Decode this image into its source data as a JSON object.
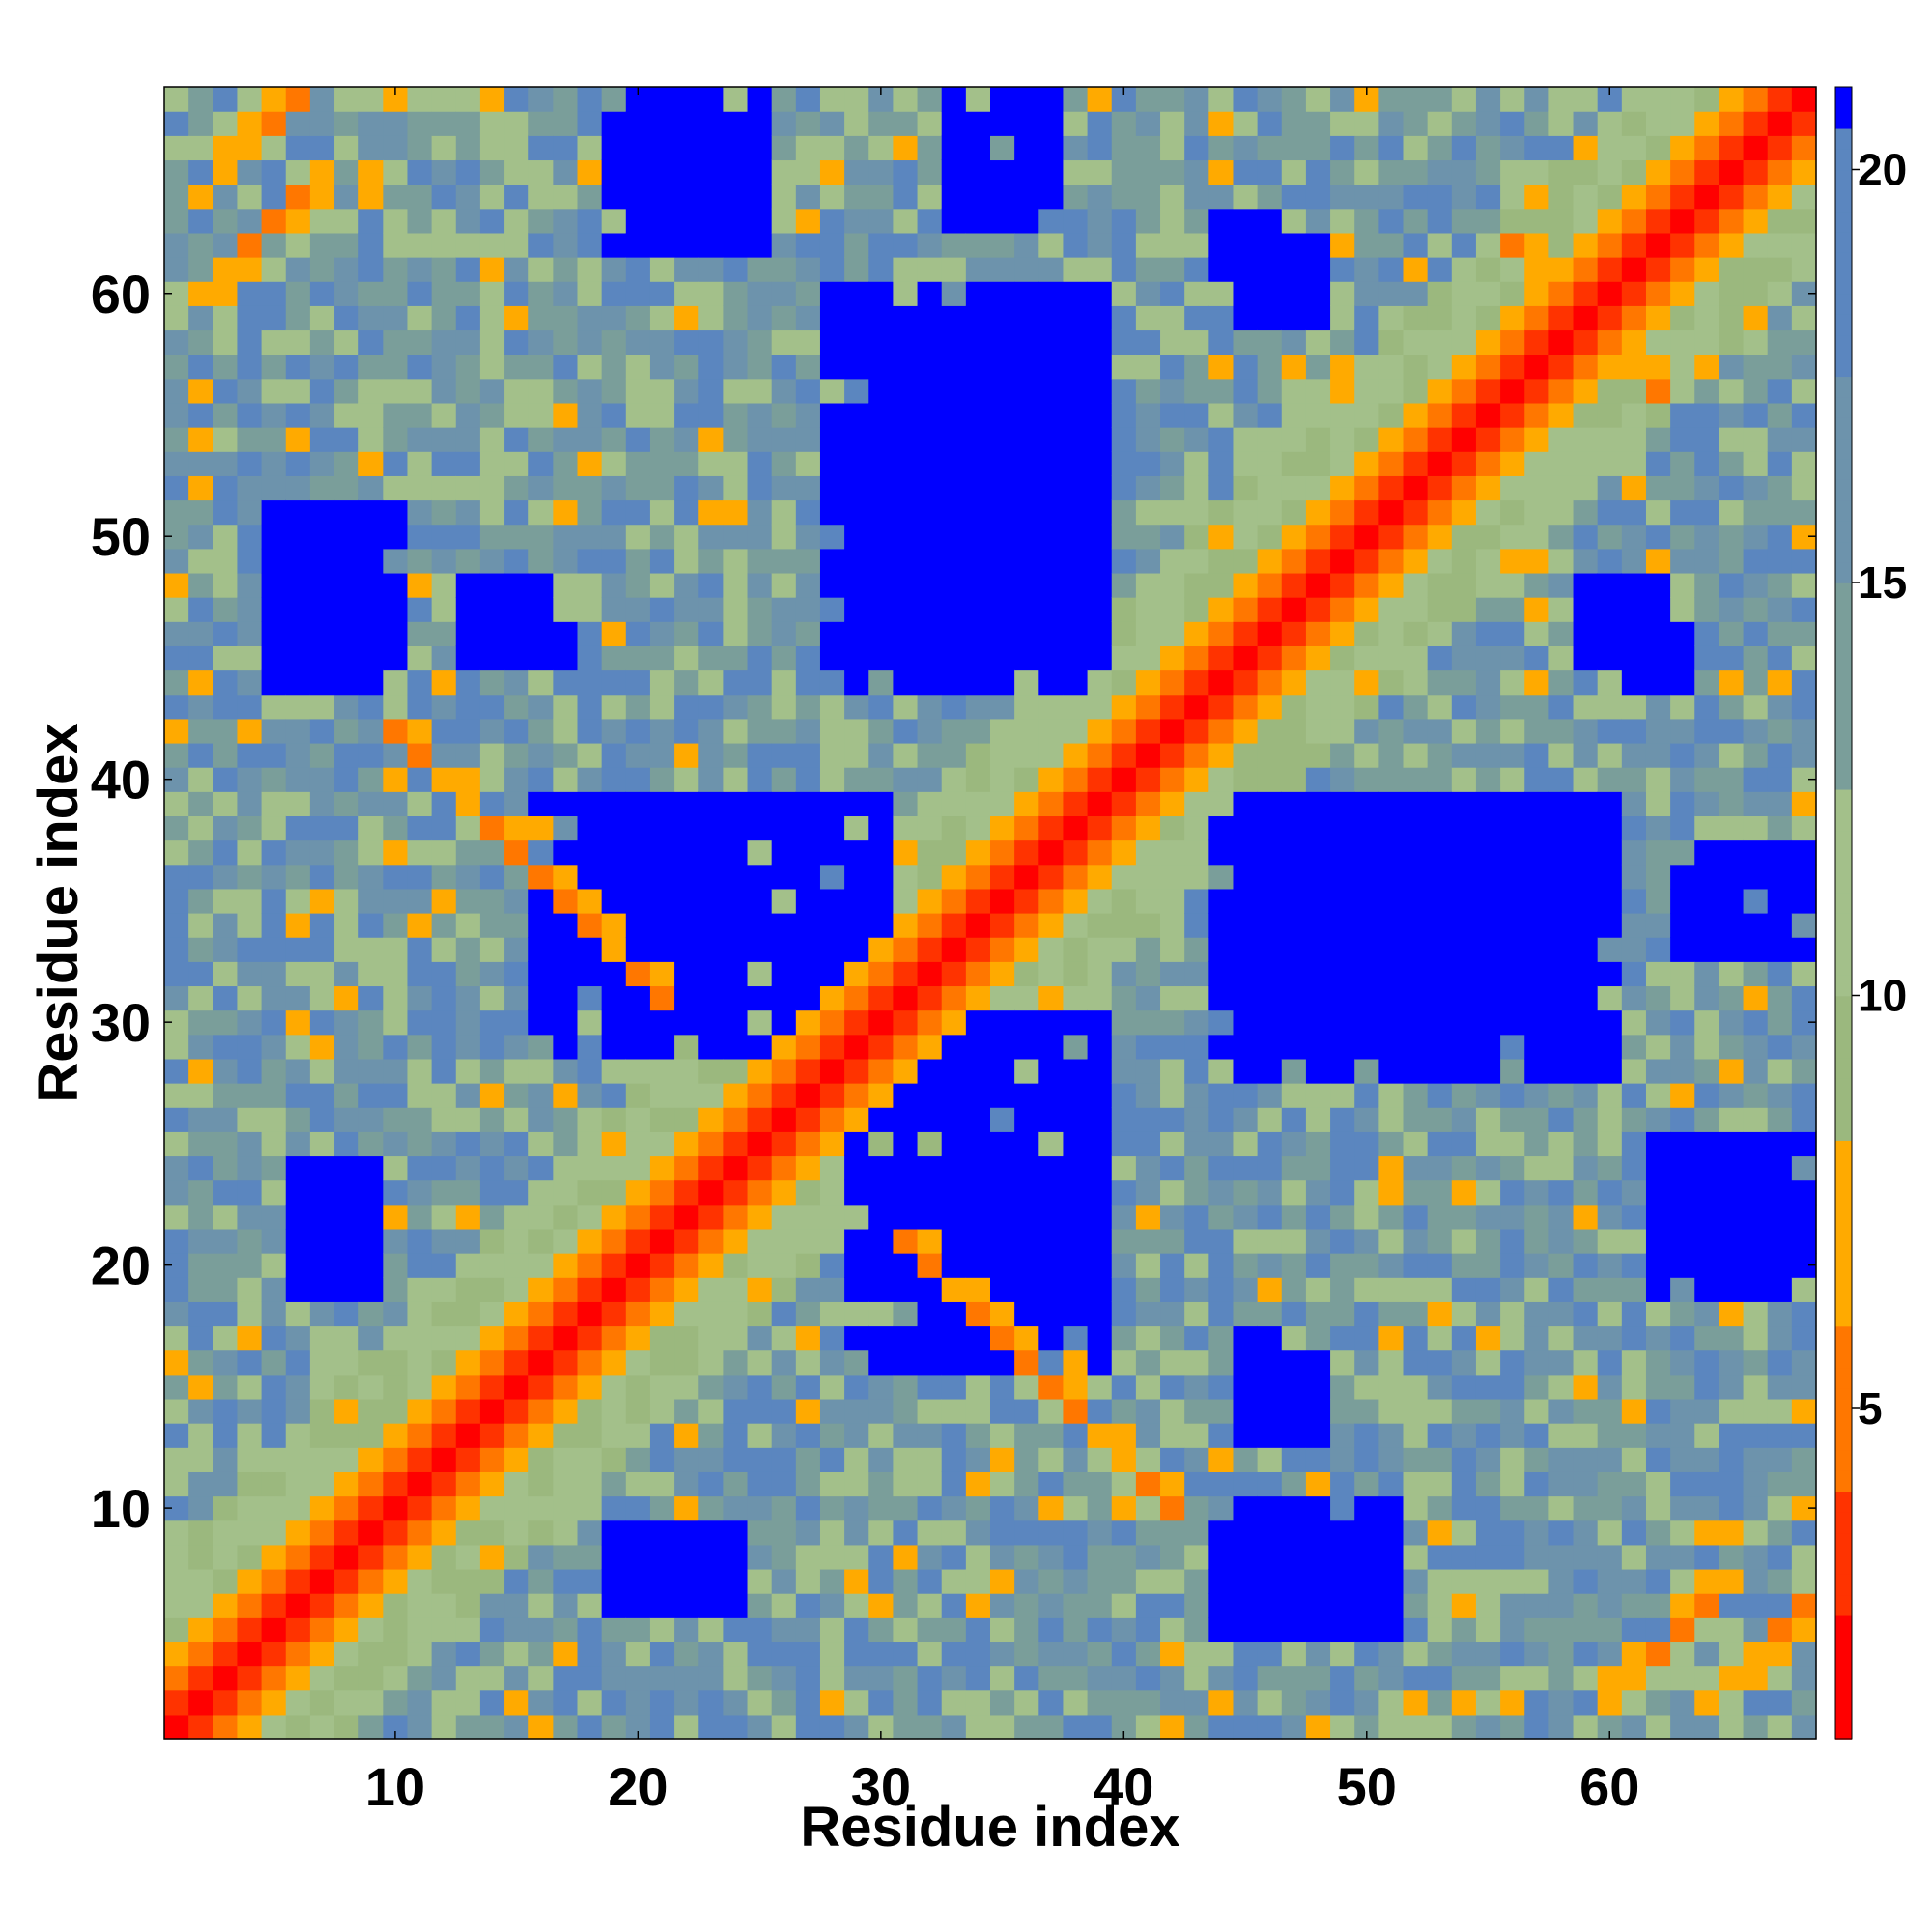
{
  "chart_data": {
    "type": "heatmap",
    "title": "",
    "xlabel": "Residue index",
    "ylabel": "Residue index",
    "xlim": [
      0.5,
      68.5
    ],
    "ylim": [
      0.5,
      68.5
    ],
    "n_residues": 68,
    "x_ticks": [
      10,
      20,
      30,
      40,
      50,
      60
    ],
    "y_ticks": [
      10,
      20,
      30,
      40,
      50,
      60
    ],
    "colorbar": {
      "range": [
        1,
        21
      ],
      "ticks": [
        5,
        10,
        15,
        20
      ],
      "colors": [
        {
          "to": 2.5,
          "color": "#ff0000"
        },
        {
          "to": 4,
          "color": "#ff3300"
        },
        {
          "to": 6,
          "color": "#ff7700"
        },
        {
          "to": 8.2,
          "color": "#ffaa00"
        },
        {
          "to": 10,
          "color": "#9bb87e"
        },
        {
          "to": 12.5,
          "color": "#a3c08a"
        },
        {
          "to": 15,
          "color": "#7a9e9a"
        },
        {
          "to": 17.5,
          "color": "#6d93ac"
        },
        {
          "to": 20.5,
          "color": "#5b86bf"
        },
        {
          "to": 99,
          "color": "#0000ff"
        }
      ]
    },
    "diagonal_band": {
      "offsets": [
        0,
        1,
        2,
        3
      ],
      "values": [
        0,
        3.8,
        5.5,
        7.5
      ]
    },
    "contact_blocks": [
      {
        "i": [
          5,
          9
        ],
        "j": [
          45,
          51
        ],
        "value": 21
      },
      {
        "i": [
          45,
          51
        ],
        "j": [
          5,
          9
        ],
        "value": 21
      },
      {
        "i": [
          19,
          24
        ],
        "j": [
          29,
          39
        ],
        "value": 21
      },
      {
        "i": [
          29,
          39
        ],
        "j": [
          19,
          24
        ],
        "value": 21
      },
      {
        "i": [
          29,
          39
        ],
        "j": [
          16,
          30
        ],
        "value": 21
      },
      {
        "i": [
          32,
          39
        ],
        "j": [
          45,
          58
        ],
        "value": 21
      },
      {
        "i": [
          29,
          38
        ],
        "j": [
          46,
          58
        ],
        "value": 21
      },
      {
        "i": [
          28,
          39
        ],
        "j": [
          45,
          60
        ],
        "value": 21
      },
      {
        "i": [
          44,
          52
        ],
        "j": [
          29,
          39
        ],
        "value": 21
      },
      {
        "i": [
          52,
          59
        ],
        "j": [
          32,
          38
        ],
        "value": 21
      },
      {
        "i": [
          5,
          10
        ],
        "j": [
          44,
          51
        ],
        "value": 21
      },
      {
        "i": [
          19,
          24
        ],
        "j": [
          6,
          9
        ],
        "value": 21
      },
      {
        "i": [
          6,
          9
        ],
        "j": [
          19,
          23
        ],
        "value": 21
      },
      {
        "i": [
          62,
          68
        ],
        "j": [
          19,
          23
        ],
        "value": 21
      },
      {
        "i": [
          63,
          67
        ],
        "j": [
          33,
          36
        ],
        "value": 21
      },
      {
        "i": [
          59,
          62
        ],
        "j": [
          45,
          48
        ],
        "value": 21
      },
      {
        "i": [
          20,
          25
        ],
        "j": [
          62,
          68
        ],
        "value": 21
      },
      {
        "i": [
          44,
          47
        ],
        "j": [
          60,
          63
        ],
        "value": 21
      },
      {
        "i": [
          13,
          17
        ],
        "j": [
          45,
          48
        ],
        "value": 21
      },
      {
        "i": [
          33,
          37
        ],
        "j": [
          64,
          68
        ],
        "value": 21
      }
    ],
    "orange_strands": [
      {
        "i0": 10,
        "j0": 42,
        "di": 1,
        "dj": -1,
        "len": 12,
        "value": 7
      },
      {
        "i0": 42,
        "j0": 10,
        "di": -1,
        "dj": 1,
        "len": 12,
        "value": 7
      },
      {
        "i0": 2,
        "j0": 64,
        "di": 1,
        "dj": 1,
        "len": 6,
        "value": 7
      },
      {
        "i0": 60,
        "j0": 2,
        "di": 1,
        "dj": 1,
        "len": 6,
        "value": 7
      },
      {
        "i0": 15,
        "j0": 2,
        "di": 1,
        "dj": -1,
        "len": 4,
        "value": 7
      },
      {
        "i0": 56,
        "j0": 62,
        "di": 1,
        "dj": -1,
        "len": 4,
        "value": 7
      }
    ],
    "seed": 7
  }
}
